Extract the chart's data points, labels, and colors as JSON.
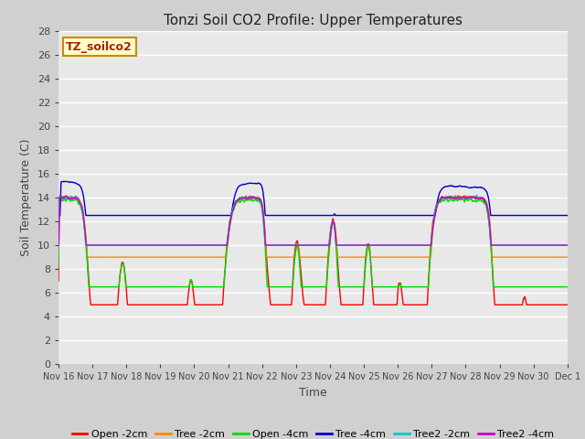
{
  "title": "Tonzi Soil CO2 Profile: Upper Temperatures",
  "xlabel": "Time",
  "ylabel": "Soil Temperature (C)",
  "ylim": [
    0,
    28
  ],
  "yticks": [
    0,
    2,
    4,
    6,
    8,
    10,
    12,
    14,
    16,
    18,
    20,
    22,
    24,
    26,
    28
  ],
  "fig_bg": "#d0d0d0",
  "plot_bg": "#e8e8e8",
  "legend_label": "TZ_soilco2",
  "legend_bg": "#ffffcc",
  "legend_border": "#cc8800",
  "legend_text_color": "#aa2200",
  "series": [
    {
      "label": "Open -2cm",
      "color": "#ff0000"
    },
    {
      "label": "Tree -2cm",
      "color": "#ff8800"
    },
    {
      "label": "Open -4cm",
      "color": "#00dd00"
    },
    {
      "label": "Tree -4cm",
      "color": "#0000cc"
    },
    {
      "label": "Tree2 -2cm",
      "color": "#00cccc"
    },
    {
      "label": "Tree2 -4cm",
      "color": "#cc00cc"
    }
  ],
  "xtick_labels": [
    "Nov 16",
    "Nov 17",
    "Nov 18",
    "Nov 19",
    "Nov 20",
    "Nov 21",
    "Nov 22",
    "Nov 23",
    "Nov 24",
    "Nov 25",
    "Nov 26",
    "Nov 27",
    "Nov 28",
    "Nov 29",
    "Nov 30",
    "Dec 1"
  ],
  "linewidth": 1.0,
  "spike_times": [
    1.0,
    2.1,
    3.05,
    4.1,
    6.2,
    7.2,
    8.3,
    9.3,
    10.2,
    12.9,
    13.9,
    14.8
  ],
  "spike_widths_up": [
    0.15,
    0.12,
    0.12,
    0.12,
    0.1,
    0.1,
    0.1,
    0.1,
    0.1,
    0.12,
    0.12,
    0.12
  ],
  "spike_widths_dn": [
    0.25,
    0.25,
    0.25,
    0.25,
    0.2,
    0.2,
    0.2,
    0.2,
    0.2,
    0.25,
    0.25,
    0.25
  ]
}
